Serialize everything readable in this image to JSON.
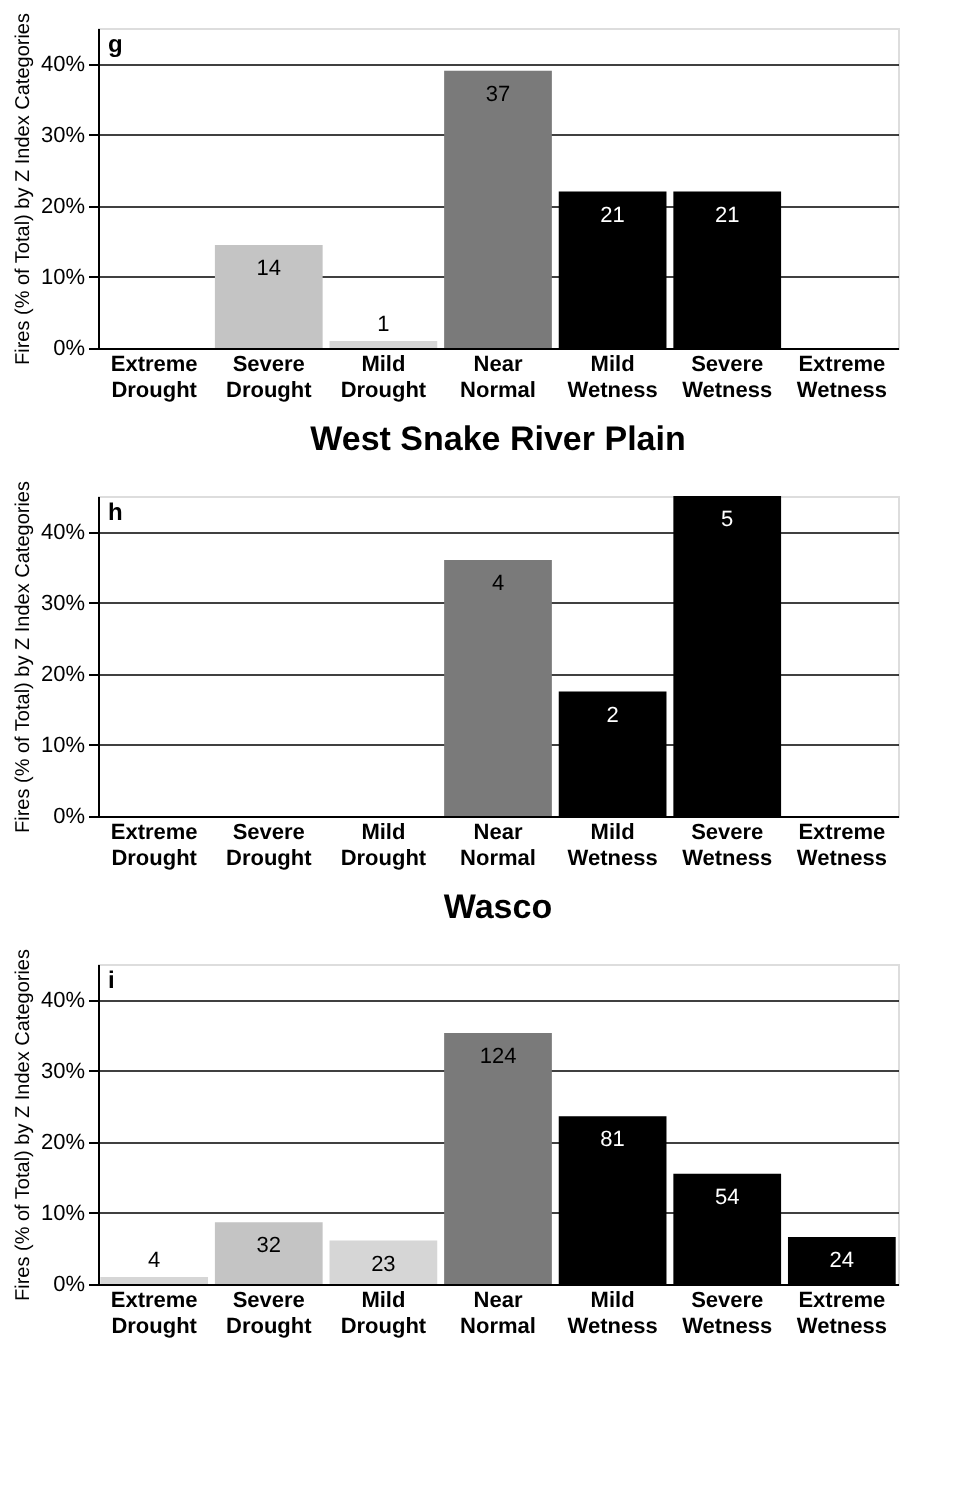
{
  "chart_data": [
    {
      "type": "bar",
      "title": "West Snake River Plain",
      "ylabel": "Fires (% of Total) by Z Index Categories",
      "annotations": [
        "g",
        {
          "text": "14",
          "x": "Severe Drought",
          "y": 14.5
        },
        {
          "text": "1",
          "x": "Mild Drought",
          "y": 1
        },
        {
          "text": "37",
          "x": "Near Normal",
          "y": 39
        },
        {
          "text": "21",
          "x": "Mild Wetness",
          "y": 22
        },
        {
          "text": "21",
          "x": "Severe Wetness",
          "y": 22
        }
      ],
      "categories": [
        "Extreme Drought",
        "Severe Drought",
        "Mild Drought",
        "Near Normal",
        "Mild Wetness",
        "Severe Wetness",
        "Extreme Wetness"
      ],
      "values": [
        0,
        14.5,
        1,
        39,
        22,
        22,
        0
      ],
      "colors": [
        "#c4c4c4",
        "#c4c4c4",
        "#d6d6d6",
        "#7a7a7a",
        "#000000",
        "#000000",
        "#000000"
      ],
      "ylim": [
        0,
        45
      ],
      "yticks": [
        {
          "value": 0,
          "label": "0%"
        },
        {
          "value": 10,
          "label": "10%"
        },
        {
          "value": 20,
          "label": "20%"
        },
        {
          "value": 30,
          "label": "30%"
        },
        {
          "value": 40,
          "label": "40%"
        }
      ],
      "grid": "y"
    },
    {
      "type": "bar",
      "title": "Wasco",
      "ylabel": "Fires (% of Total) by Z Index Categories",
      "annotations": [
        "h",
        {
          "text": "4",
          "x": "Near Normal",
          "y": 36
        },
        {
          "text": "2",
          "x": "Mild Wetness",
          "y": 17.5
        },
        {
          "text": "5",
          "x": "Severe Wetness",
          "y": 45
        }
      ],
      "categories": [
        "Extreme Drought",
        "Severe Drought",
        "Mild Drought",
        "Near Normal",
        "Mild Wetness",
        "Severe Wetness",
        "Extreme Wetness"
      ],
      "values": [
        0,
        0,
        0,
        36,
        17.5,
        45,
        0
      ],
      "colors": [
        "#c4c4c4",
        "#c4c4c4",
        "#d6d6d6",
        "#7a7a7a",
        "#000000",
        "#000000",
        "#000000"
      ],
      "ylim": [
        0,
        45
      ],
      "yticks": [
        {
          "value": 0,
          "label": "0%"
        },
        {
          "value": 10,
          "label": "10%"
        },
        {
          "value": 20,
          "label": "20%"
        },
        {
          "value": 30,
          "label": "30%"
        },
        {
          "value": 40,
          "label": "40%"
        }
      ],
      "grid": "y"
    },
    {
      "type": "bar",
      "ylabel": "Fires (% of Total) by Z Index Categories",
      "annotations": [
        "i",
        {
          "text": "4",
          "x": "Extreme Drought",
          "y": 1
        },
        {
          "text": "32",
          "x": "Severe Drought",
          "y": 8.7
        },
        {
          "text": "23",
          "x": "Mild Drought",
          "y": 6.1
        },
        {
          "text": "124",
          "x": "Near Normal",
          "y": 35.3
        },
        {
          "text": "81",
          "x": "Mild Wetness",
          "y": 23.6
        },
        {
          "text": "54",
          "x": "Severe Wetness",
          "y": 15.5
        },
        {
          "text": "24",
          "x": "Extreme Wetness",
          "y": 6.6
        }
      ],
      "categories": [
        "Extreme Drought",
        "Severe Drought",
        "Mild Drought",
        "Near Normal",
        "Mild Wetness",
        "Severe Wetness",
        "Extreme Wetness"
      ],
      "values": [
        1,
        8.7,
        6.1,
        35.3,
        23.6,
        15.5,
        6.6
      ],
      "colors": [
        "#d6d6d6",
        "#c4c4c4",
        "#d6d6d6",
        "#7a7a7a",
        "#000000",
        "#000000",
        "#000000"
      ],
      "ylim": [
        0,
        45
      ],
      "yticks": [
        {
          "value": 0,
          "label": "0%"
        },
        {
          "value": 10,
          "label": "10%"
        },
        {
          "value": 20,
          "label": "20%"
        },
        {
          "value": 30,
          "label": "30%"
        },
        {
          "value": 40,
          "label": "40%"
        }
      ],
      "grid": "y"
    }
  ]
}
